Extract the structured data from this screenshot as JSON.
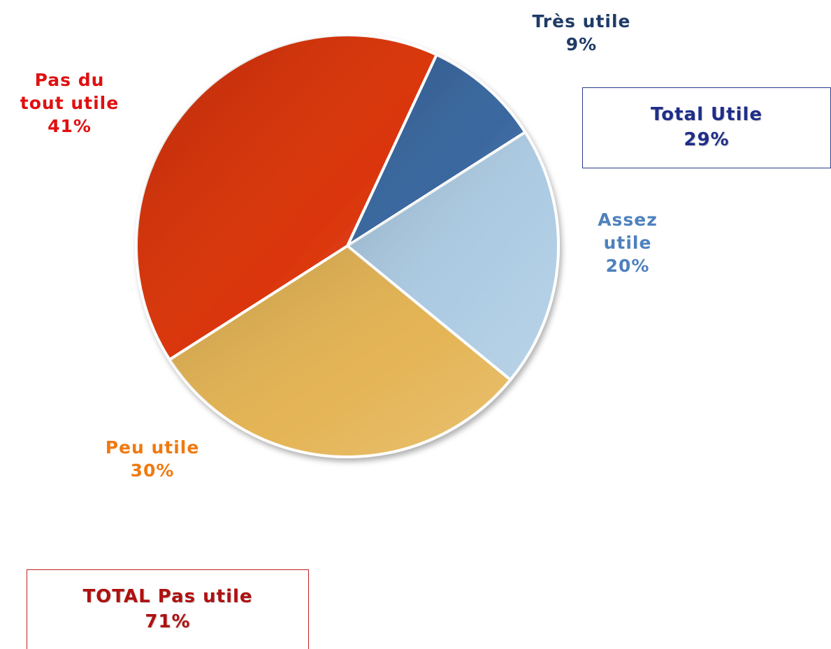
{
  "chart_data": {
    "type": "pie",
    "categories": [
      "Très utile",
      "Assez utile",
      "Peu utile",
      "Pas du tout utile"
    ],
    "values": [
      9,
      20,
      30,
      41
    ],
    "value_labels": [
      "9%",
      "20%",
      "30%",
      "41%"
    ],
    "colors": [
      "#2f5f99",
      "#a9c9e2",
      "#e3b14d",
      "#d92b00"
    ],
    "label_colors": [
      "#1f3b66",
      "#4f81bd",
      "#f07a10",
      "#e01010"
    ],
    "annotations": [
      {
        "title": "Total Utile",
        "value_label": "29%",
        "color": "#1f2d8a"
      },
      {
        "title": "TOTAL Pas utile",
        "value_label": "71%",
        "color": "#b01010"
      }
    ]
  }
}
